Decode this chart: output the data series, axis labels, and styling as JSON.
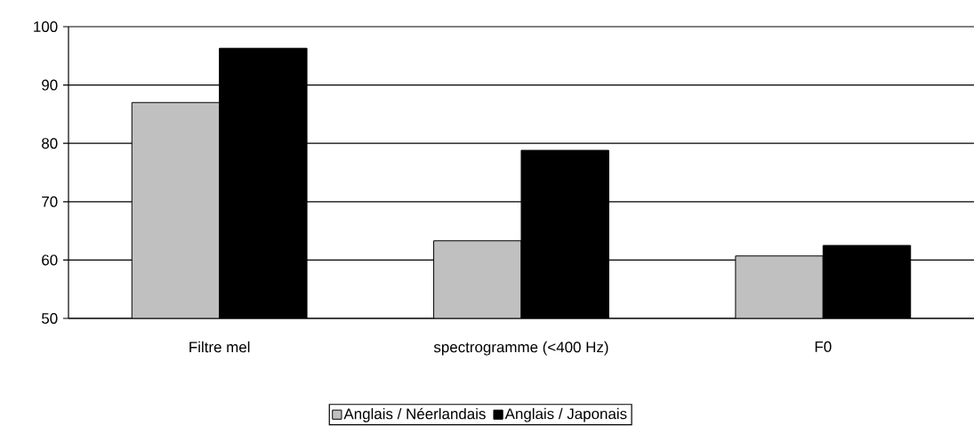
{
  "chart_data": {
    "type": "bar",
    "categories": [
      "Filtre mel",
      "spectrogramme (<400 Hz)",
      "F0"
    ],
    "series": [
      {
        "name": "Anglais / Néerlandais",
        "color": "#c0c0c0",
        "values": [
          87,
          63.3,
          60.7
        ]
      },
      {
        "name": "Anglais / Japonais",
        "color": "#000000",
        "values": [
          96.3,
          78.8,
          62.5
        ]
      }
    ],
    "ylim": [
      50,
      100
    ],
    "yticks": [
      50,
      60,
      70,
      80,
      90,
      100
    ],
    "grid": "y",
    "legend": "bottom"
  }
}
